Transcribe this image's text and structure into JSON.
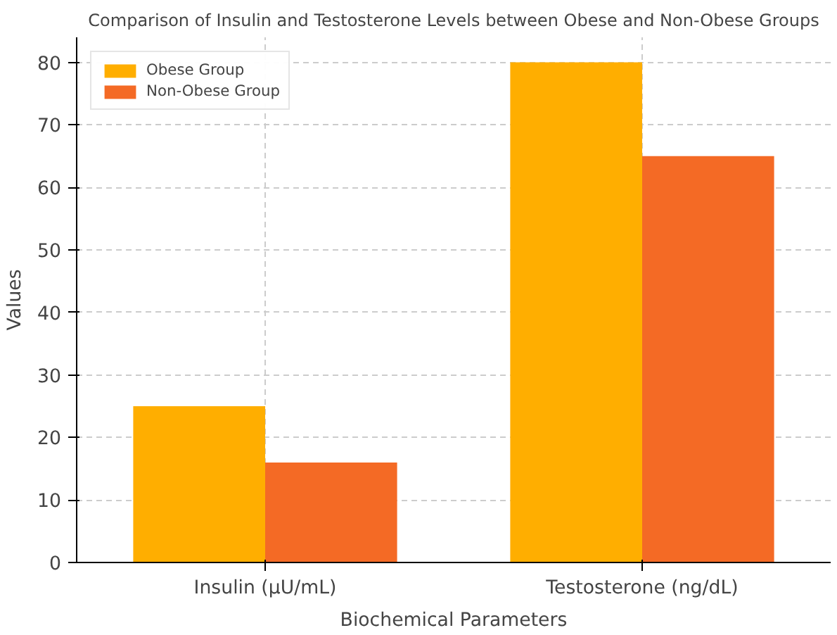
{
  "chart_data": {
    "type": "bar",
    "title": "Comparison of Insulin and Testosterone Levels between Obese and Non-Obese Groups",
    "xlabel": "Biochemical Parameters",
    "ylabel": "Values",
    "categories": [
      "Insulin (µU/mL)",
      "Testosterone (ng/dL)"
    ],
    "series": [
      {
        "name": "Obese Group",
        "color": "#ffae00",
        "values": [
          25,
          80
        ]
      },
      {
        "name": "Non-Obese Group",
        "color": "#f46a25",
        "values": [
          16,
          65
        ]
      }
    ],
    "ylim": [
      0,
      84
    ],
    "yticks": [
      0,
      10,
      20,
      30,
      40,
      50,
      60,
      70,
      80
    ],
    "grid": true,
    "legend": "top left"
  }
}
